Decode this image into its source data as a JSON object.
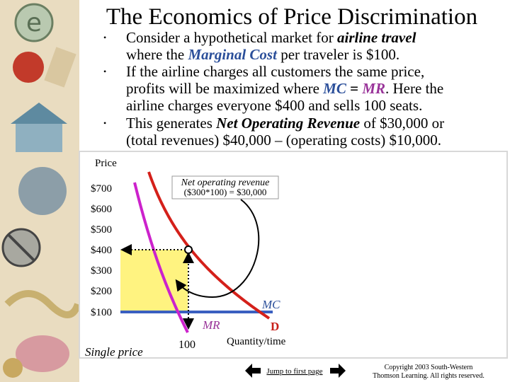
{
  "title": "The Economics of Price Discrimination",
  "bullets": [
    {
      "lines": [
        [
          "Consider a hypothetical market for ",
          "airline travel"
        ],
        [
          "where the ",
          "Marginal Cost",
          " per traveler is $100."
        ]
      ]
    },
    {
      "lines": [
        [
          "If the airline charges all customers the same price,"
        ],
        [
          "profits will be maximized where ",
          "MC",
          " = ",
          "MR",
          ".  Here the"
        ],
        [
          "airline charges everyone $400 and sells 100 seats."
        ]
      ]
    },
    {
      "lines": [
        [
          "This generates ",
          "Net Operating Revenue",
          " of $30,000 or"
        ],
        [
          "(total revenues) $40,000 – (operating costs) $10,000."
        ]
      ]
    }
  ],
  "diagram": {
    "y_axis_label": "Price",
    "price_labels": [
      "$700",
      "$600",
      "$500",
      "$400",
      "$300",
      "$200",
      "$100"
    ],
    "callout": [
      "Net operating revenue",
      "($300*100) = $30,000"
    ],
    "mc_label": "MC",
    "mr_label": "MR",
    "d_label": "D",
    "quantity_label": "100",
    "x_axis_label": "Quantity/time",
    "caption": "Single price"
  },
  "footer": {
    "link": "Jump to first page",
    "copyright": [
      "Copyright 2003 South-Western",
      "Thomson Learning. All rights reserved."
    ]
  }
}
